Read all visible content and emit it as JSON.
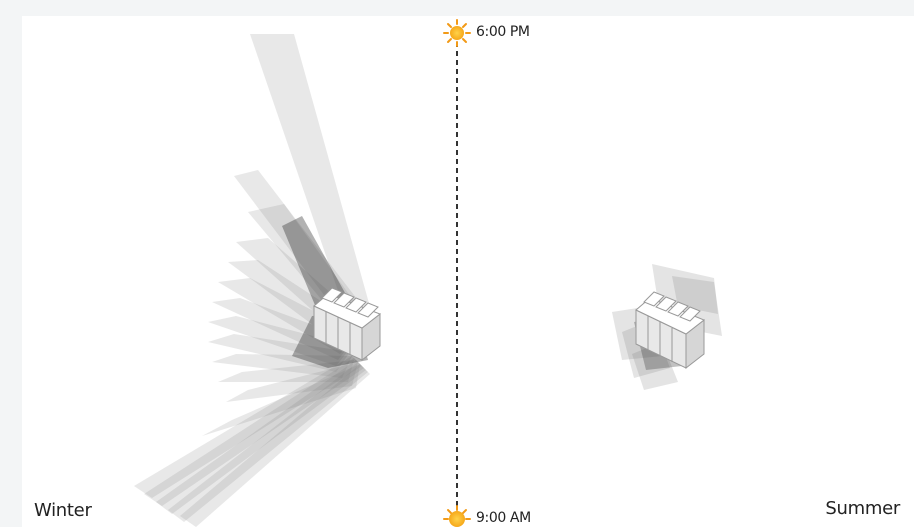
{
  "labels": {
    "time_top": "6:00 PM",
    "time_bottom": "9:00 AM",
    "season_left": "Winter",
    "season_right": "Summer"
  },
  "icons": {
    "sun": "sun-icon"
  },
  "colors": {
    "sun_fill": "#f6b21a",
    "sun_rays": "#f29a17",
    "shadow": "#7a7a7a",
    "divider": "#333333",
    "building": "#ffffff",
    "building_edge": "#999999"
  }
}
